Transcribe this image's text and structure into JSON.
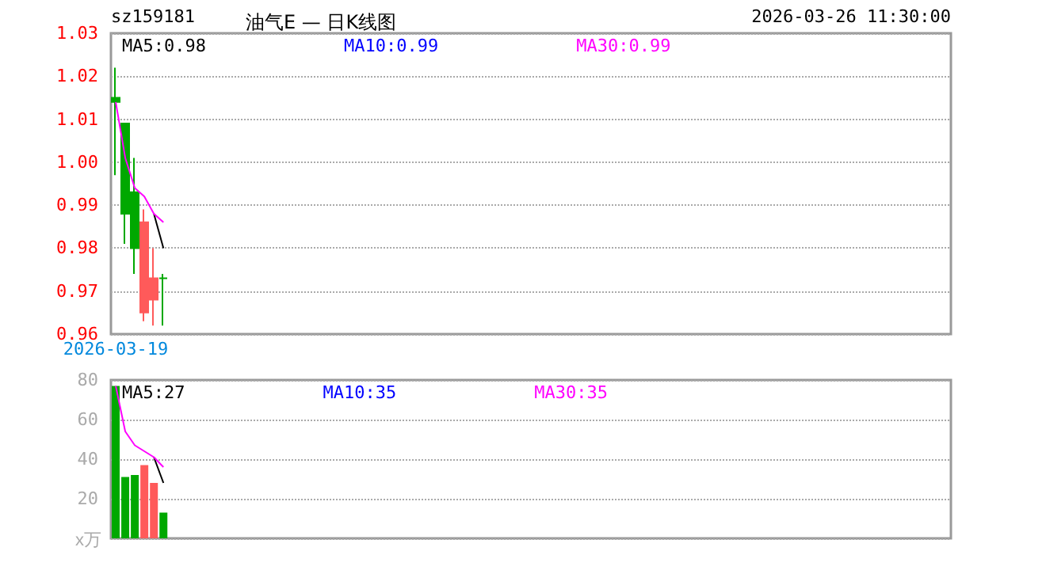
{
  "chart_data": [
    {
      "type": "candlestick",
      "title": "油气E — 日K线图",
      "subtitle": "sz159181",
      "annotations": [
        "2026-03-26 11:30:00"
      ],
      "categories": [
        "2026-03-19",
        null,
        null,
        null,
        null,
        null,
        null,
        null,
        null,
        null,
        null,
        null,
        null,
        null,
        null,
        null,
        null,
        null,
        null,
        null,
        null,
        null,
        null,
        null,
        null,
        null,
        null,
        null,
        null,
        null,
        null,
        null,
        null,
        null,
        null,
        null,
        null,
        null,
        null,
        null,
        null,
        null,
        null,
        null,
        null,
        null,
        null,
        null,
        null,
        null,
        null,
        null,
        null,
        null,
        null,
        null,
        null,
        null,
        null,
        null,
        null,
        null,
        null,
        null,
        null,
        null,
        null,
        null,
        null,
        null,
        null,
        null,
        null,
        null,
        null,
        null,
        null,
        null,
        null,
        null,
        null,
        null,
        null,
        null,
        null,
        null,
        null,
        null
      ],
      "ohlc": [
        [
          1.015,
          1.022,
          0.997,
          1.014
        ],
        [
          1.009,
          1.009,
          0.981,
          0.988
        ],
        [
          0.993,
          1.001,
          0.974,
          0.98
        ],
        [
          0.965,
          0.989,
          0.963,
          0.986
        ],
        [
          0.968,
          0.98,
          0.962,
          0.973
        ],
        [
          0.973,
          0.974,
          0.962,
          0.973
        ],
        null,
        null,
        null,
        null,
        null,
        null,
        null,
        null,
        null,
        null,
        null,
        null,
        null,
        null,
        null,
        null,
        null,
        null,
        null,
        null,
        null,
        null,
        null,
        null,
        null,
        null,
        null,
        null,
        null,
        null,
        null,
        null,
        null,
        null,
        null,
        null,
        null,
        null,
        null,
        null,
        null,
        null,
        null,
        null,
        null,
        null,
        null,
        null,
        null,
        null,
        null,
        null,
        null,
        null,
        null,
        null,
        null,
        null,
        null,
        null,
        null,
        null,
        null,
        null,
        null,
        null,
        null,
        null,
        null,
        null,
        null,
        null,
        null,
        null,
        null,
        null,
        null,
        null,
        null,
        null,
        null,
        null
      ],
      "colors": [
        "#00a800",
        "#00a800",
        "#00a800",
        "#ff5a5a",
        "#ff5a5a",
        "#00a800",
        null,
        null,
        null,
        null,
        null,
        null,
        null,
        null,
        null,
        null,
        null,
        null,
        null,
        null,
        null,
        null,
        null,
        null,
        null,
        null,
        null,
        null,
        null,
        null,
        null,
        null,
        null,
        null,
        null,
        null,
        null,
        null,
        null,
        null,
        null,
        null,
        null,
        null,
        null,
        null,
        null,
        null,
        null,
        null,
        null,
        null,
        null,
        null,
        null,
        null,
        null,
        null,
        null,
        null,
        null,
        null,
        null,
        null,
        null,
        null,
        null,
        null,
        null,
        null,
        null,
        null,
        null,
        null,
        null,
        null,
        null,
        null,
        null,
        null,
        null,
        null,
        null,
        null,
        null,
        null,
        null,
        null
      ],
      "series": [
        {
          "type": "line",
          "name": "MA5:0.98",
          "color": "#000000",
          "values": [
            null,
            null,
            null,
            null,
            0.988,
            0.98,
            null,
            null,
            null,
            null,
            null,
            null,
            null,
            null,
            null,
            null,
            null,
            null,
            null,
            null,
            null,
            null,
            null,
            null,
            null,
            null,
            null,
            null,
            null,
            null,
            null,
            null,
            null,
            null,
            null,
            null,
            null,
            null,
            null,
            null,
            null,
            null,
            null,
            null,
            null,
            null,
            null,
            null,
            null,
            null,
            null,
            null,
            null,
            null,
            null,
            null,
            null,
            null,
            null,
            null,
            null,
            null,
            null,
            null,
            null,
            null,
            null,
            null,
            null,
            null,
            null,
            null,
            null,
            null,
            null,
            null,
            null,
            null,
            null,
            null,
            null,
            null,
            null,
            null,
            null,
            null,
            null,
            null
          ]
        },
        {
          "type": "line",
          "name": "MA10:0.99",
          "color": "#0000ff",
          "values": [
            null,
            null,
            null,
            null,
            null,
            null,
            null,
            null,
            null,
            null,
            null,
            null,
            null,
            null,
            null,
            null,
            null,
            null,
            null,
            null,
            null,
            null,
            null,
            null,
            null,
            null,
            null,
            null,
            null,
            null,
            null,
            null,
            null,
            null,
            null,
            null,
            null,
            null,
            null,
            null,
            null,
            null,
            null,
            null,
            null,
            null,
            null,
            null,
            null,
            null,
            null,
            null,
            null,
            null,
            null,
            null,
            null,
            null,
            null,
            null,
            null,
            null,
            null,
            null,
            null,
            null,
            null,
            null,
            null,
            null,
            null,
            null,
            null,
            null,
            null,
            null,
            null,
            null,
            null,
            null,
            null,
            null,
            null,
            null,
            null,
            null,
            null,
            null
          ]
        },
        {
          "type": "line",
          "name": "MA30:0.99",
          "color": "#ff00ff",
          "values": [
            1.014,
            1.001,
            0.994,
            0.992,
            0.988,
            0.986,
            null,
            null,
            null,
            null,
            null,
            null,
            null,
            null,
            null,
            null,
            null,
            null,
            null,
            null,
            null,
            null,
            null,
            null,
            null,
            null,
            null,
            null,
            null,
            null,
            null,
            null,
            null,
            null,
            null,
            null,
            null,
            null,
            null,
            null,
            null,
            null,
            null,
            null,
            null,
            null,
            null,
            null,
            null,
            null,
            null,
            null,
            null,
            null,
            null,
            null,
            null,
            null,
            null,
            null,
            null,
            null,
            null,
            null,
            null,
            null,
            null,
            null,
            null,
            null,
            null,
            null,
            null,
            null,
            null,
            null,
            null,
            null,
            null,
            null,
            null,
            null,
            null,
            null,
            null,
            null,
            null,
            null
          ]
        }
      ],
      "ylim": [
        0.96,
        1.03
      ],
      "yticks": [
        0.96,
        0.97,
        0.98,
        0.99,
        {
          "value": 1,
          "label": "1.00"
        },
        1.01,
        1.02,
        1.03
      ],
      "grid": "y",
      "legend": "top",
      "marker": "none"
    },
    {
      "type": "bar",
      "ylabel": "x万",
      "categories": [
        null,
        null,
        null,
        null,
        null,
        null,
        null,
        null,
        null,
        null,
        null,
        null,
        null,
        null,
        null,
        null,
        null,
        null,
        null,
        null,
        null,
        null,
        null,
        null,
        null,
        null,
        null,
        null,
        null,
        null,
        null,
        null,
        null,
        null,
        null,
        null,
        null,
        null,
        null,
        null,
        null,
        null,
        null,
        null,
        null,
        null,
        null,
        null,
        null,
        null,
        null,
        null,
        null,
        null,
        null,
        null,
        null,
        null,
        null,
        null,
        null,
        null,
        null,
        null,
        null,
        null,
        null,
        null,
        null,
        null,
        null,
        null,
        null,
        null,
        null,
        null,
        null,
        null,
        null,
        null,
        null,
        null,
        null,
        null,
        null,
        null,
        null,
        null
      ],
      "values": [
        77,
        31,
        32,
        37,
        28,
        13,
        null,
        null,
        null,
        null,
        null,
        null,
        null,
        null,
        null,
        null,
        null,
        null,
        null,
        null,
        null,
        null,
        null,
        null,
        null,
        null,
        null,
        null,
        null,
        null,
        null,
        null,
        null,
        null,
        null,
        null,
        null,
        null,
        null,
        null,
        null,
        null,
        null,
        null,
        null,
        null,
        null,
        null,
        null,
        null,
        null,
        null,
        null,
        null,
        null,
        null,
        null,
        null,
        null,
        null,
        null,
        null,
        null,
        null,
        null,
        null,
        null,
        null,
        null,
        null,
        null,
        null,
        null,
        null,
        null,
        null,
        null,
        null,
        null,
        null,
        null,
        null,
        null,
        null,
        null,
        null,
        null,
        null
      ],
      "colors": [
        "#00a800",
        "#00a800",
        "#00a800",
        "#ff5a5a",
        "#ff5a5a",
        "#00a800",
        null,
        null,
        null,
        null,
        null,
        null,
        null,
        null,
        null,
        null,
        null,
        null,
        null,
        null,
        null,
        null,
        null,
        null,
        null,
        null,
        null,
        null,
        null,
        null,
        null,
        null,
        null,
        null,
        null,
        null,
        null,
        null,
        null,
        null,
        null,
        null,
        null,
        null,
        null,
        null,
        null,
        null,
        null,
        null,
        null,
        null,
        null,
        null,
        null,
        null,
        null,
        null,
        null,
        null,
        null,
        null,
        null,
        null,
        null,
        null,
        null,
        null,
        null,
        null,
        null,
        null,
        null,
        null,
        null,
        null,
        null,
        null,
        null,
        null,
        null,
        null,
        null,
        null,
        null,
        null,
        null,
        null
      ],
      "series": [
        {
          "type": "line",
          "name": "MA5:27",
          "color": "#000000",
          "values": [
            null,
            null,
            null,
            null,
            41,
            28,
            null,
            null,
            null,
            null,
            null,
            null,
            null,
            null,
            null,
            null,
            null,
            null,
            null,
            null,
            null,
            null,
            null,
            null,
            null,
            null,
            null,
            null,
            null,
            null,
            null,
            null,
            null,
            null,
            null,
            null,
            null,
            null,
            null,
            null,
            null,
            null,
            null,
            null,
            null,
            null,
            null,
            null,
            null,
            null,
            null,
            null,
            null,
            null,
            null,
            null,
            null,
            null,
            null,
            null,
            null,
            null,
            null,
            null,
            null,
            null,
            null,
            null,
            null,
            null,
            null,
            null,
            null,
            null,
            null,
            null,
            null,
            null,
            null,
            null,
            null,
            null,
            null,
            null,
            null,
            null,
            null,
            null
          ]
        },
        {
          "type": "line",
          "name": "MA10:35",
          "color": "#0000ff",
          "values": [
            null,
            null,
            null,
            null,
            null,
            null,
            null,
            null,
            null,
            null,
            null,
            null,
            null,
            null,
            null,
            null,
            null,
            null,
            null,
            null,
            null,
            null,
            null,
            null,
            null,
            null,
            null,
            null,
            null,
            null,
            null,
            null,
            null,
            null,
            null,
            null,
            null,
            null,
            null,
            null,
            null,
            null,
            null,
            null,
            null,
            null,
            null,
            null,
            null,
            null,
            null,
            null,
            null,
            null,
            null,
            null,
            null,
            null,
            null,
            null,
            null,
            null,
            null,
            null,
            null,
            null,
            null,
            null,
            null,
            null,
            null,
            null,
            null,
            null,
            null,
            null,
            null,
            null,
            null,
            null,
            null,
            null,
            null,
            null,
            null,
            null,
            null,
            null
          ]
        },
        {
          "type": "line",
          "name": "MA30:35",
          "color": "#ff00ff",
          "values": [
            77,
            54,
            47,
            44,
            41,
            36,
            null,
            null,
            null,
            null,
            null,
            null,
            null,
            null,
            null,
            null,
            null,
            null,
            null,
            null,
            null,
            null,
            null,
            null,
            null,
            null,
            null,
            null,
            null,
            null,
            null,
            null,
            null,
            null,
            null,
            null,
            null,
            null,
            null,
            null,
            null,
            null,
            null,
            null,
            null,
            null,
            null,
            null,
            null,
            null,
            null,
            null,
            null,
            null,
            null,
            null,
            null,
            null,
            null,
            null,
            null,
            null,
            null,
            null,
            null,
            null,
            null,
            null,
            null,
            null,
            null,
            null,
            null,
            null,
            null,
            null,
            null,
            null,
            null,
            null,
            null,
            null,
            null,
            null,
            null,
            null,
            null,
            null
          ]
        }
      ],
      "ylim": [
        0,
        80
      ],
      "yticks": [
        {
          "value": 0,
          "label": null
        },
        20,
        40,
        60,
        80
      ],
      "grid": "y",
      "legend": "top",
      "marker": "none",
      "tick_labels": "y"
    }
  ]
}
